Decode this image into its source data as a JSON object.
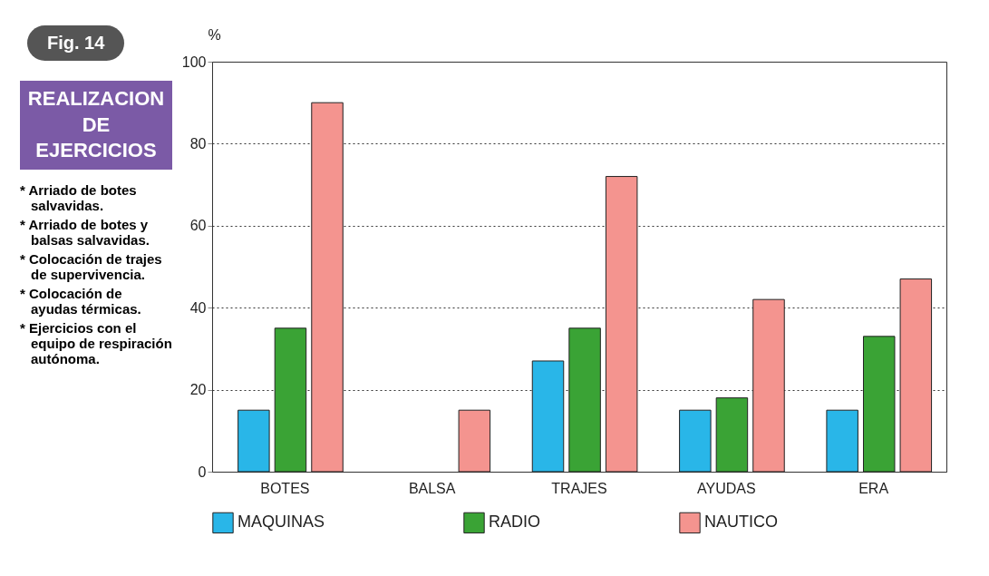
{
  "chart_data": {
    "type": "bar",
    "title": "REALIZACION DE EJERCICIOS",
    "ylabel": "%",
    "annotations": [
      "Fig. 14",
      "* Arriado de botes salvavidas.",
      "* Arriado de botes y balsas salvavidas.",
      "* Colocación de trajes de supervivencia.",
      "* Colocación de ayudas térmicas.",
      "* Ejercicios con el equipo de respiración autónoma."
    ],
    "categories": [
      "BOTES",
      "BALSA",
      "TRAJES",
      "AYUDAS",
      "ERA"
    ],
    "series": [
      {
        "name": "MAQUINAS",
        "color": "#29b6e8",
        "values": [
          15,
          null,
          27,
          15,
          15
        ]
      },
      {
        "name": "RADIO",
        "color": "#3aa335",
        "values": [
          35,
          null,
          35,
          18,
          33
        ]
      },
      {
        "name": "NAUTICO",
        "color": "#f4948f",
        "values": [
          90,
          15,
          72,
          42,
          47
        ]
      }
    ],
    "ylim": [
      0,
      100
    ],
    "yticks": [
      0,
      20,
      40,
      60,
      80,
      100
    ],
    "grid": "y",
    "legend": "bottom"
  }
}
